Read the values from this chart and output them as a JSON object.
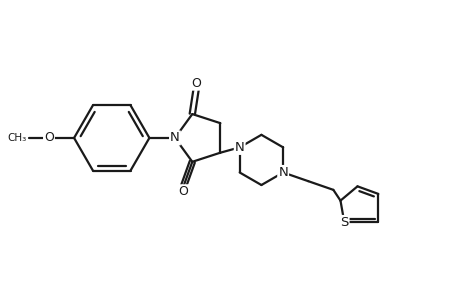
{
  "bg_color": "#ffffff",
  "line_color": "#1a1a1a",
  "line_width": 1.6,
  "font_size": 9.5,
  "figsize": [
    4.6,
    3.0
  ],
  "dpi": 100,
  "xlim": [
    0.0,
    9.5
  ],
  "ylim": [
    0.5,
    6.5
  ]
}
